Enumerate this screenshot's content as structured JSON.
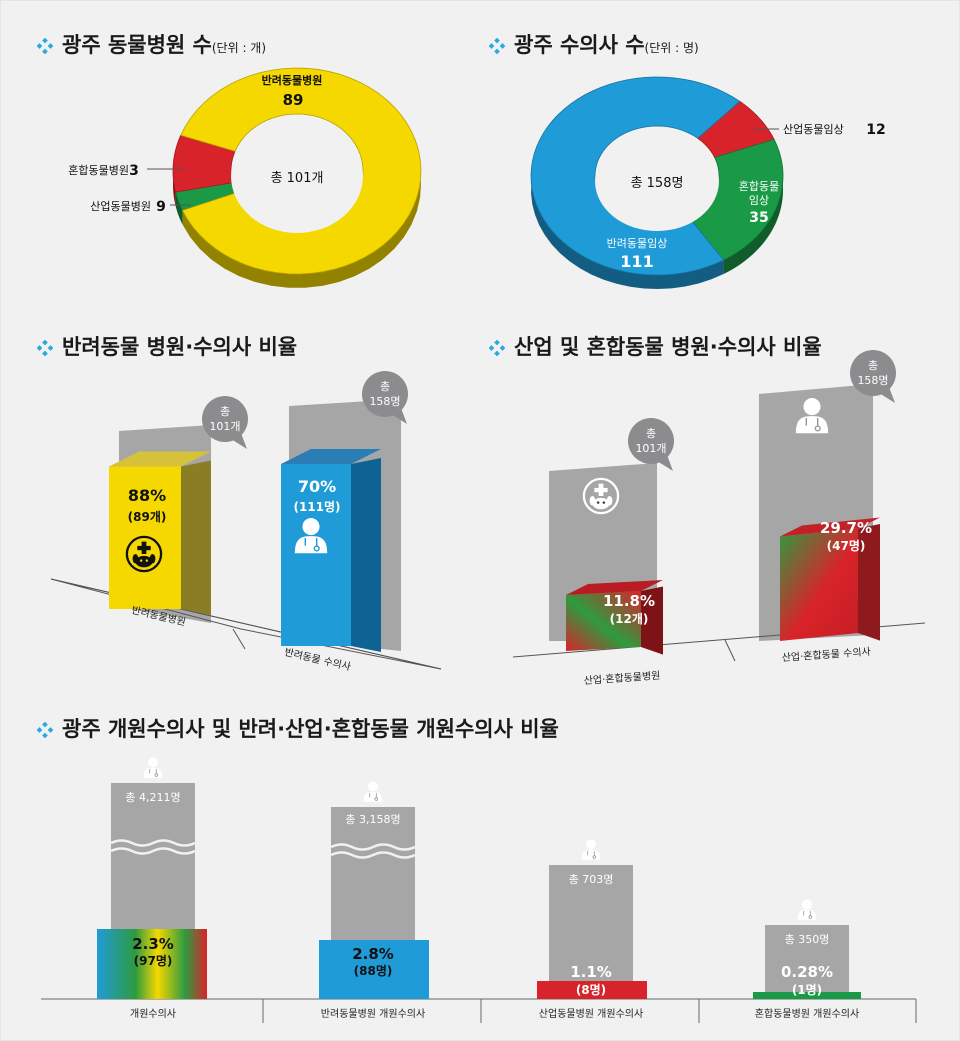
{
  "colors": {
    "companion": "#f5d800",
    "vet_blue": "#1f9bd8",
    "industrial": "#d9232a",
    "mixed": "#1a9a47",
    "gray": "#a6a6a7",
    "bubble": "#8c8c8e",
    "accent": "#29a9e0"
  },
  "icons": [
    "diamond-icon",
    "animal-hospital-icon",
    "veterinarian-icon"
  ],
  "sections": {
    "s1": {
      "title": "광주 동물병원 수",
      "unit": "(단위 : 개)"
    },
    "s2": {
      "title": "광주 수의사 수",
      "unit": "(단위 : 명)"
    },
    "s3": {
      "title": "반려동물 병원·수의사 비율"
    },
    "s4": {
      "title": "산업 및 혼합동물 병원·수의사 비율"
    },
    "s5": {
      "title": "광주 개원수의사 및 반려·산업·혼합동물 개원수의사 비율"
    }
  },
  "chart_data": [
    {
      "type": "pie",
      "variant": "donut",
      "center_label": "총 101개",
      "slices": [
        {
          "label": "반려동물병원",
          "value": 89,
          "color": "#f5d800"
        },
        {
          "label": "산업동물병원",
          "value": 9,
          "color": "#d9232a"
        },
        {
          "label": "혼합동물병원",
          "value": 3,
          "color": "#1a9a47"
        }
      ]
    },
    {
      "type": "pie",
      "variant": "donut",
      "center_label": "총 158명",
      "slices": [
        {
          "label": "반려동물임상",
          "value": 111,
          "color": "#1f9bd8"
        },
        {
          "label": "산업동물임상",
          "value": 12,
          "color": "#d9232a"
        },
        {
          "label": "혼합동물\n임상",
          "value": 35,
          "color": "#1a9a47"
        }
      ]
    },
    {
      "type": "bar",
      "categories": [
        "반려동물병원",
        "반려동물 수의사"
      ],
      "values": [
        88,
        70
      ],
      "labels": [
        "88%",
        "70%"
      ],
      "sublabels": [
        "(89개)",
        "(111명)"
      ],
      "totals": [
        "총\n101개",
        "총\n158명"
      ],
      "ylim": [
        0,
        100
      ]
    },
    {
      "type": "bar",
      "categories": [
        "산업·혼합동물병원",
        "산업·혼합동물 수의사"
      ],
      "values": [
        11.8,
        29.7
      ],
      "labels": [
        "11.8%",
        "29.7%"
      ],
      "sublabels": [
        "(12개)",
        "(47명)"
      ],
      "totals": [
        "총\n101개",
        "총\n158명"
      ],
      "ylim": [
        0,
        100
      ]
    },
    {
      "type": "bar",
      "categories": [
        "개원수의사",
        "반려동물병원 개원수의사",
        "산업동물병원 개원수의사",
        "혼합동물병원 개원수의사"
      ],
      "totals": [
        "총 4,211명",
        "총 3,158명",
        "총 703명",
        "총 350명"
      ],
      "total_values": [
        4211,
        3158,
        703,
        350
      ],
      "values": [
        2.3,
        2.8,
        1.1,
        0.28
      ],
      "labels": [
        "2.3%",
        "2.8%",
        "1.1%",
        "0.28%"
      ],
      "sublabels": [
        "(97명)",
        "(88명)",
        "(8명)",
        "(1명)"
      ],
      "counts": [
        97,
        88,
        8,
        1
      ]
    }
  ]
}
